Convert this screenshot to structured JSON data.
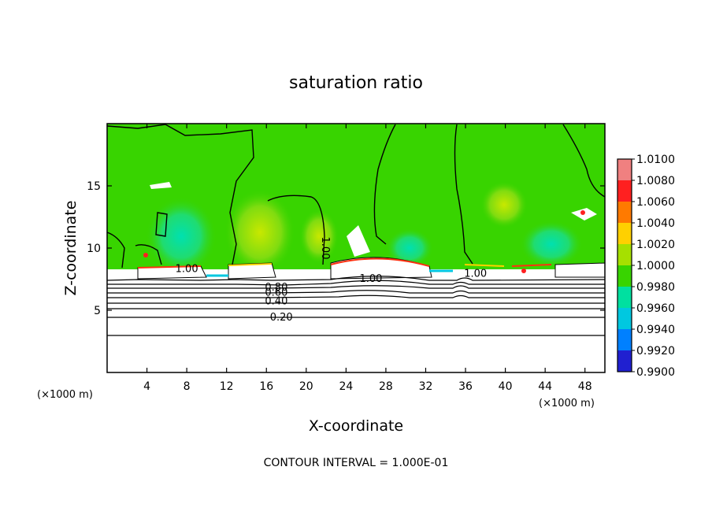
{
  "chart_data": {
    "type": "heatmap",
    "title": "saturation ratio",
    "xlabel": "X-coordinate",
    "ylabel": "Z-coordinate",
    "x_unit_label": "(×1000 m)",
    "x_unit_label_right": "(×1000 m)",
    "xlim": [
      0,
      50
    ],
    "ylim": [
      0,
      20
    ],
    "x_ticks": [
      4,
      8,
      12,
      16,
      20,
      24,
      28,
      32,
      36,
      40,
      44,
      48
    ],
    "y_ticks": [
      5,
      10,
      15
    ],
    "footer": "CONTOUR INTERVAL = 1.000E-01",
    "colorbar": {
      "levels": [
        "1.0100",
        "1.0080",
        "1.0060",
        "1.0040",
        "1.0020",
        "1.0000",
        "0.9980",
        "0.9960",
        "0.9940",
        "0.9920",
        "0.9900"
      ],
      "colors": [
        "#f08080",
        "#ff2020",
        "#ff7a00",
        "#ffd000",
        "#a6e000",
        "#38d400",
        "#00e0a0",
        "#00c8e0",
        "#0080ff",
        "#2020d0",
        "#6a1fa0"
      ]
    },
    "contours": [
      {
        "label": "0.20",
        "z": 4.5,
        "x": 17.5
      },
      {
        "label": "0.40",
        "z": 5.8,
        "x": 17.0
      },
      {
        "label": "0.60",
        "z": 6.5,
        "x": 17.0
      },
      {
        "label": "0.80",
        "z": 6.9,
        "x": 17.0
      },
      {
        "label": "1.00",
        "z": 8.4,
        "x": 8.0
      },
      {
        "label": "1.00",
        "z": 10.0,
        "x": 22.0
      },
      {
        "label": "1.00",
        "z": 7.6,
        "x": 26.5
      },
      {
        "label": "1.00",
        "z": 8.0,
        "x": 37.0
      }
    ]
  }
}
